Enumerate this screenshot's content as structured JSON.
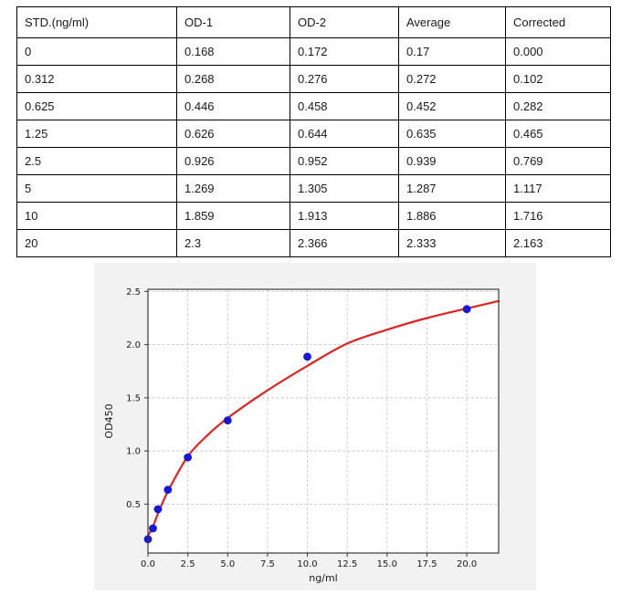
{
  "table": {
    "columns": [
      "STD.(ng/ml)",
      "OD-1",
      "OD-2",
      "Average",
      "Corrected"
    ],
    "rows": [
      [
        "0",
        "0.168",
        "0.172",
        "0.17",
        "0.000"
      ],
      [
        "0.312",
        "0.268",
        "0.276",
        "0.272",
        "0.102"
      ],
      [
        "0.625",
        "0.446",
        "0.458",
        "0.452",
        "0.282"
      ],
      [
        "1.25",
        "0.626",
        "0.644",
        "0.635",
        "0.465"
      ],
      [
        "2.5",
        "0.926",
        "0.952",
        "0.939",
        "0.769"
      ],
      [
        "5",
        "1.269",
        "1.305",
        "1.287",
        "1.117"
      ],
      [
        "10",
        "1.859",
        "1.913",
        "1.886",
        "1.716"
      ],
      [
        "20",
        "2.3",
        "2.366",
        "2.333",
        "2.163"
      ]
    ]
  },
  "chart_data": {
    "type": "scatter",
    "title": "",
    "xlabel": "ng/ml",
    "ylabel": "OD450",
    "xlim": [
      0,
      22
    ],
    "ylim": [
      0.04,
      2.52
    ],
    "grid": true,
    "legend_position": "none",
    "x_ticks": [
      0,
      2.5,
      5,
      7.5,
      10,
      12.5,
      15,
      17.5,
      20
    ],
    "x_tick_labels": [
      "0.0",
      "2.5",
      "5.0",
      "7.5",
      "10.0",
      "12.5",
      "15.0",
      "17.5",
      "20.0"
    ],
    "y_ticks": [
      0.5,
      1.0,
      1.5,
      2.0,
      2.5
    ],
    "y_tick_labels": [
      "0.5",
      "1.0",
      "1.5",
      "2.0",
      "2.5"
    ],
    "series": [
      {
        "name": "standard-points",
        "type": "scatter",
        "x": [
          0,
          0.312,
          0.625,
          1.25,
          2.5,
          5,
          10,
          20
        ],
        "y": [
          0.17,
          0.272,
          0.452,
          0.635,
          0.939,
          1.287,
          1.886,
          2.333
        ]
      },
      {
        "name": "fit-curve",
        "type": "line",
        "x": [
          0,
          0.312,
          0.625,
          1.25,
          2.5,
          3.75,
          5,
          7.5,
          10,
          12.5,
          15,
          17.5,
          20,
          22
        ],
        "y": [
          0.2,
          0.29,
          0.41,
          0.62,
          0.95,
          1.15,
          1.31,
          1.57,
          1.8,
          2.01,
          2.14,
          2.25,
          2.34,
          2.41
        ]
      }
    ],
    "colors": {
      "point": "#1616dd",
      "curve": "#e02424",
      "grid": "#c8c8c8",
      "spine": "#3a3a3a",
      "tick_text": "#1a1a1a",
      "figure_bg": "#f2f2f2",
      "plot_bg": "#ffffff"
    }
  }
}
